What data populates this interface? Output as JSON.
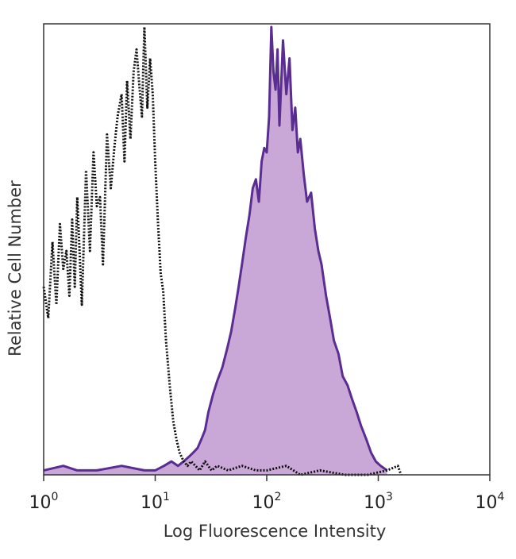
{
  "chart_data": {
    "type": "histogram",
    "xlabel": "Log Fluorescence Intensity",
    "ylabel": "Relative Cell Number",
    "xscale": "log",
    "xlim": [
      1,
      10000
    ],
    "ylim": [
      0,
      100
    ],
    "x_ticks": [
      {
        "base": "10",
        "exp": "0"
      },
      {
        "base": "10",
        "exp": "1"
      },
      {
        "base": "10",
        "exp": "2"
      },
      {
        "base": "10",
        "exp": "3"
      },
      {
        "base": "10",
        "exp": "4"
      }
    ],
    "grid": false,
    "legend": "none",
    "series": [
      {
        "style": "dotted-line",
        "color": "#111111",
        "x": [
          1.0,
          1.1,
          1.2,
          1.3,
          1.4,
          1.5,
          1.6,
          1.7,
          1.8,
          1.9,
          2.0,
          2.2,
          2.4,
          2.6,
          2.8,
          3.0,
          3.2,
          3.4,
          3.7,
          4.0,
          4.3,
          4.6,
          5.0,
          5.3,
          5.6,
          6.0,
          6.4,
          6.8,
          7.2,
          7.6,
          8.0,
          8.5,
          9.0,
          9.5,
          10.0,
          10.6,
          11.2,
          11.8,
          12.5,
          13.5,
          14.5,
          15.5,
          16.5,
          18.0,
          19.5,
          21.0,
          23.0,
          25.0,
          28.0,
          32.0,
          36.0,
          45.0,
          60.0,
          80.0,
          100.0,
          150.0,
          200.0,
          300.0,
          500.0,
          800.0,
          1200.0,
          1500.0,
          1600.0
        ],
        "values": [
          42,
          35,
          52,
          38,
          56,
          46,
          50,
          40,
          57,
          42,
          62,
          38,
          68,
          50,
          72,
          60,
          62,
          47,
          76,
          64,
          73,
          80,
          85,
          70,
          88,
          75,
          90,
          95,
          87,
          80,
          100,
          82,
          93,
          85,
          70,
          56,
          45,
          41,
          30,
          20,
          12,
          8,
          5,
          3,
          2,
          3,
          2,
          1,
          3,
          1,
          2,
          1,
          2,
          1,
          1,
          2,
          0,
          1,
          0,
          0,
          1,
          2,
          0
        ]
      },
      {
        "style": "filled-area",
        "stroke": "#5a2d91",
        "fill": "#c9a8d8",
        "x": [
          1.0,
          1.5,
          2.0,
          3.0,
          5.0,
          8.0,
          10.0,
          12.0,
          14.0,
          16.0,
          18.0,
          20.0,
          22.0,
          24.0,
          26.0,
          28.0,
          30.0,
          33.0,
          36.0,
          40.0,
          44.0,
          48.0,
          52.0,
          56.0,
          60.0,
          65.0,
          70.0,
          75.0,
          80.0,
          85.0,
          90.0,
          95.0,
          100.0,
          105.0,
          110.0,
          115.0,
          120.0,
          125.0,
          130.0,
          140.0,
          150.0,
          160.0,
          170.0,
          180.0,
          190.0,
          200.0,
          215.0,
          230.0,
          250.0,
          270.0,
          290.0,
          310.0,
          340.0,
          370.0,
          400.0,
          440.0,
          480.0,
          530.0,
          580.0,
          640.0,
          700.0,
          780.0,
          860.0,
          950.0,
          1050.0,
          1200.0
        ],
        "values": [
          1,
          2,
          1,
          1,
          2,
          1,
          1,
          2,
          3,
          2,
          3,
          4,
          5,
          6,
          8,
          10,
          14,
          18,
          21,
          24,
          28,
          32,
          37,
          42,
          47,
          53,
          58,
          64,
          66,
          61,
          70,
          73,
          72,
          80,
          100,
          90,
          86,
          95,
          78,
          97,
          85,
          93,
          77,
          82,
          72,
          75,
          67,
          61,
          63,
          55,
          50,
          47,
          40,
          35,
          30,
          27,
          22,
          20,
          17,
          14,
          11,
          8,
          5,
          3,
          2,
          1
        ]
      }
    ]
  }
}
